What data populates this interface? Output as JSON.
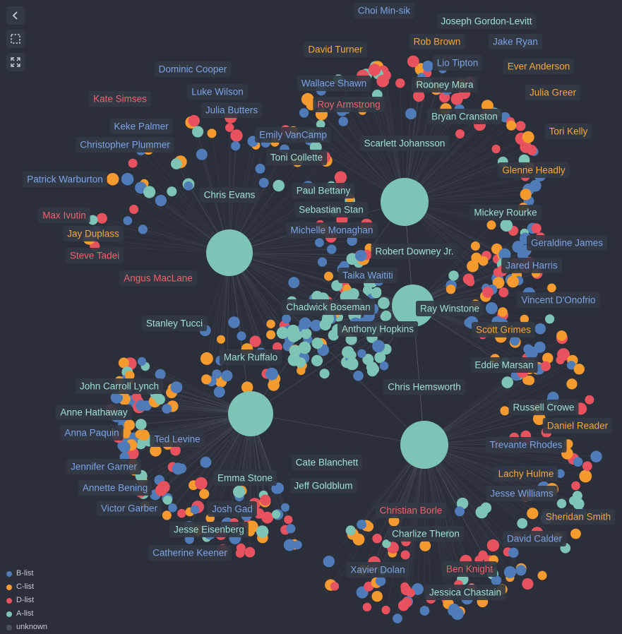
{
  "colors": {
    "background": "#2b2f3a",
    "edge": "#7d8597",
    "hub": "#7ec4b4",
    "label_bg": "#333944",
    "B-list": "#4f7bb8",
    "C-list": "#f59a2f",
    "D-list": "#e8525f",
    "A-list": "#7ec4b4",
    "unknown": "#4a5060"
  },
  "label_colors": {
    "B-list": "#7ba3e6",
    "C-list": "#f7a73a",
    "D-list": "#f2616b",
    "A-list": "#9fe0d1"
  },
  "toolbar": {
    "back_icon": "chevron-left-icon",
    "select_icon": "marquee-select-icon",
    "fullscreen_icon": "expand-icon"
  },
  "legend": [
    {
      "label": "B-list",
      "tier": "B-list"
    },
    {
      "label": "C-list",
      "tier": "C-list"
    },
    {
      "label": "D-list",
      "tier": "D-list"
    },
    {
      "label": "A-list",
      "tier": "A-list"
    },
    {
      "label": "unknown",
      "tier": "unknown"
    }
  ],
  "hubs": [
    {
      "name": "Robert Downey Jr.",
      "tier": "A-list"
    },
    {
      "name": "Chris Evans",
      "tier": "A-list"
    },
    {
      "name": "Mark Ruffalo",
      "tier": "A-list"
    },
    {
      "name": "Chris Hemsworth",
      "tier": "A-list"
    },
    {
      "name": "Ray Winstone",
      "tier": "A-list"
    }
  ],
  "people": [
    {
      "name": "Choi Min-sik",
      "tier": "B-list"
    },
    {
      "name": "Joseph Gordon-Levitt",
      "tier": "A-list"
    },
    {
      "name": "David Turner",
      "tier": "C-list"
    },
    {
      "name": "Rob Brown",
      "tier": "C-list"
    },
    {
      "name": "Jake Ryan",
      "tier": "B-list"
    },
    {
      "name": "Lio Tipton",
      "tier": "B-list"
    },
    {
      "name": "Ever Anderson",
      "tier": "C-list"
    },
    {
      "name": "Dominic Cooper",
      "tier": "B-list"
    },
    {
      "name": "Wallace Shawn",
      "tier": "B-list"
    },
    {
      "name": "Rooney Mara",
      "tier": "A-list"
    },
    {
      "name": "Julia Greer",
      "tier": "C-list"
    },
    {
      "name": "Kate Simses",
      "tier": "D-list"
    },
    {
      "name": "Luke Wilson",
      "tier": "B-list"
    },
    {
      "name": "Roy Armstrong",
      "tier": "D-list"
    },
    {
      "name": "Julia Butters",
      "tier": "B-list"
    },
    {
      "name": "Bryan Cranston",
      "tier": "A-list"
    },
    {
      "name": "Keke Palmer",
      "tier": "B-list"
    },
    {
      "name": "Tori Kelly",
      "tier": "C-list"
    },
    {
      "name": "Emily VanCamp",
      "tier": "B-list"
    },
    {
      "name": "Christopher Plummer",
      "tier": "B-list"
    },
    {
      "name": "Scarlett Johansson",
      "tier": "A-list"
    },
    {
      "name": "Toni Collette",
      "tier": "A-list"
    },
    {
      "name": "Glenne Headly",
      "tier": "C-list"
    },
    {
      "name": "Patrick Warburton",
      "tier": "B-list"
    },
    {
      "name": "Paul Bettany",
      "tier": "A-list"
    },
    {
      "name": "Max Ivutin",
      "tier": "D-list"
    },
    {
      "name": "Sebastian Stan",
      "tier": "A-list"
    },
    {
      "name": "Mickey Rourke",
      "tier": "A-list"
    },
    {
      "name": "Jay Duplass",
      "tier": "C-list"
    },
    {
      "name": "Michelle Monaghan",
      "tier": "B-list"
    },
    {
      "name": "Geraldine James",
      "tier": "B-list"
    },
    {
      "name": "Steve Tadei",
      "tier": "D-list"
    },
    {
      "name": "Jared Harris",
      "tier": "B-list"
    },
    {
      "name": "Taika Waititi",
      "tier": "B-list"
    },
    {
      "name": "Angus MacLane",
      "tier": "D-list"
    },
    {
      "name": "Vincent D'Onofrio",
      "tier": "B-list"
    },
    {
      "name": "Chadwick Boseman",
      "tier": "A-list"
    },
    {
      "name": "Stanley Tucci",
      "tier": "A-list"
    },
    {
      "name": "Anthony Hopkins",
      "tier": "A-list"
    },
    {
      "name": "Scott Grimes",
      "tier": "C-list"
    },
    {
      "name": "Eddie Marsan",
      "tier": "A-list"
    },
    {
      "name": "John Carroll Lynch",
      "tier": "A-list"
    },
    {
      "name": "Anne Hathaway",
      "tier": "A-list"
    },
    {
      "name": "Russell Crowe",
      "tier": "A-list"
    },
    {
      "name": "Daniel Reader",
      "tier": "C-list"
    },
    {
      "name": "Anna Paquin",
      "tier": "B-list"
    },
    {
      "name": "Ted Levine",
      "tier": "B-list"
    },
    {
      "name": "Trevante Rhodes",
      "tier": "B-list"
    },
    {
      "name": "Cate Blanchett",
      "tier": "A-list"
    },
    {
      "name": "Jennifer Garner",
      "tier": "B-list"
    },
    {
      "name": "Lachy Hulme",
      "tier": "C-list"
    },
    {
      "name": "Emma Stone",
      "tier": "A-list"
    },
    {
      "name": "Jeff Goldblum",
      "tier": "A-list"
    },
    {
      "name": "Annette Bening",
      "tier": "B-list"
    },
    {
      "name": "Jesse Williams",
      "tier": "B-list"
    },
    {
      "name": "Victor Garber",
      "tier": "B-list"
    },
    {
      "name": "Josh Gad",
      "tier": "B-list"
    },
    {
      "name": "Christian Borle",
      "tier": "D-list"
    },
    {
      "name": "Sheridan Smith",
      "tier": "C-list"
    },
    {
      "name": "Jesse Eisenberg",
      "tier": "A-list"
    },
    {
      "name": "Charlize Theron",
      "tier": "A-list"
    },
    {
      "name": "David Calder",
      "tier": "B-list"
    },
    {
      "name": "Catherine Keener",
      "tier": "B-list"
    },
    {
      "name": "Xavier Dolan",
      "tier": "B-list"
    },
    {
      "name": "Ben Knight",
      "tier": "D-list"
    },
    {
      "name": "Jessica Chastain",
      "tier": "A-list"
    }
  ]
}
